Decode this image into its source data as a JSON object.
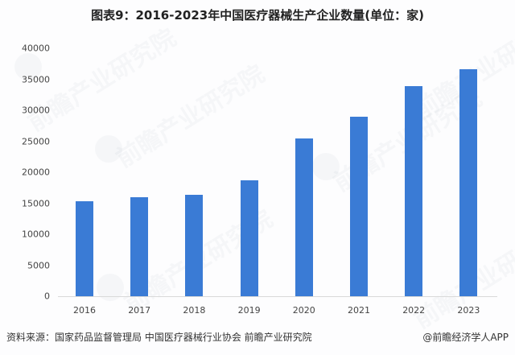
{
  "title": "图表9：2016-2023年中国医疗器械生产企业数量(单位：家)",
  "footer": {
    "source": "资料来源：国家药品监督管理局 中国医疗器械行业协会 前瞻产业研究院",
    "credit": "@前瞻经济学人APP"
  },
  "watermark_text": "前瞻产业研究院",
  "colors": {
    "bar": "#3a7bd5",
    "background": "#fdfdfe",
    "axis": "#d9d9d9"
  },
  "chart_data": {
    "type": "bar",
    "title": "图表9：2016-2023年中国医疗器械生产企业数量(单位：家)",
    "xlabel": "",
    "ylabel": "",
    "categories": [
      "2016",
      "2017",
      "2018",
      "2019",
      "2020",
      "2021",
      "2022",
      "2023"
    ],
    "values": [
      15300,
      16000,
      16400,
      18700,
      25400,
      28900,
      33900,
      36600
    ],
    "yticks": [
      "0",
      "5000",
      "10000",
      "15000",
      "20000",
      "25000",
      "30000",
      "35000",
      "40000"
    ],
    "ylim": [
      0,
      40000
    ],
    "grid": false,
    "legend": null
  }
}
